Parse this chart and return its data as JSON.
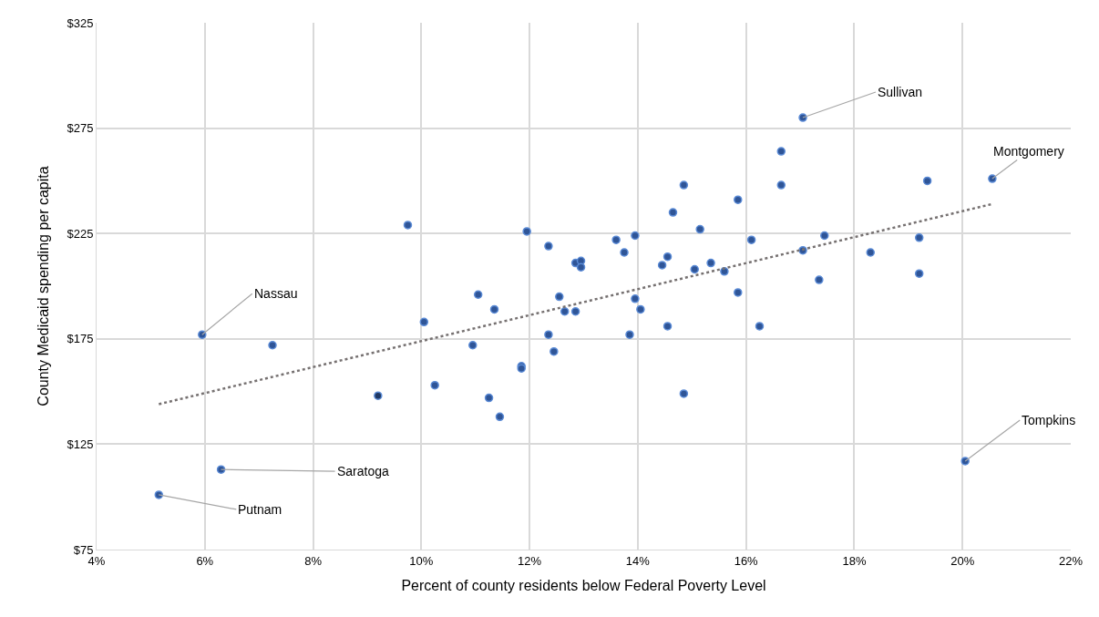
{
  "chart_data": {
    "type": "scatter",
    "xlabel": "Percent of county residents below Federal Poverty Level",
    "ylabel": "County Medicaid spending per capita",
    "xlim": [
      4,
      22
    ],
    "ylim": [
      75,
      325
    ],
    "xticks": [
      {
        "value": 4,
        "label": "4%"
      },
      {
        "value": 6,
        "label": "6%"
      },
      {
        "value": 8,
        "label": "8%"
      },
      {
        "value": 10,
        "label": "10%"
      },
      {
        "value": 12,
        "label": "12%"
      },
      {
        "value": 14,
        "label": "14%"
      },
      {
        "value": 16,
        "label": "16%"
      },
      {
        "value": 18,
        "label": "18%"
      },
      {
        "value": 20,
        "label": "20%"
      },
      {
        "value": 22,
        "label": "22%"
      }
    ],
    "yticks": [
      {
        "value": 75,
        "label": "$75"
      },
      {
        "value": 125,
        "label": "$125"
      },
      {
        "value": 175,
        "label": "$175"
      },
      {
        "value": 225,
        "label": "$225"
      },
      {
        "value": 275,
        "label": "$275"
      },
      {
        "value": 325,
        "label": "$325"
      }
    ],
    "grid": true,
    "marker": "circle",
    "series": [
      {
        "color": "#2f5597",
        "x": [
          5.15,
          5.95,
          6.3,
          7.25,
          9.2,
          9.75,
          10.05,
          10.25,
          10.95,
          11.05,
          11.25,
          11.35,
          11.45,
          11.85,
          11.85,
          11.95,
          12.35,
          12.35,
          12.45,
          12.55,
          12.65,
          12.85,
          12.95,
          12.95,
          12.85,
          13.6,
          13.75,
          13.85,
          13.95,
          13.95,
          14.05,
          14.45,
          14.55,
          14.55,
          14.65,
          14.85,
          14.85,
          15.05,
          15.15,
          15.35,
          15.6,
          15.85,
          15.85,
          16.1,
          16.25,
          16.65,
          16.65,
          17.05,
          17.05,
          17.35,
          17.45,
          18.3,
          19.2,
          19.2,
          19.35,
          20.05,
          20.55
        ],
        "values": [
          101,
          177,
          113,
          172,
          148,
          229,
          183,
          153,
          172,
          196,
          147,
          189,
          138,
          162,
          161,
          226,
          219,
          177,
          169,
          195,
          188,
          211,
          212,
          209,
          188,
          222,
          216,
          177,
          224,
          194,
          189,
          210,
          214,
          181,
          235,
          248,
          149,
          208,
          227,
          211,
          207,
          241,
          197,
          222,
          181,
          264,
          248,
          280,
          217,
          203,
          224,
          216,
          223,
          206,
          250,
          117,
          251
        ],
        "colors": [
          "#2f5597",
          "#2f5597",
          "#2f5597",
          "#2f5597",
          "#1f3864",
          "#2f5597",
          "#2f5597",
          "#2f5597",
          "#2f5597",
          "#2f5597",
          "#2f5597",
          "#2f5597",
          "#2f5597",
          "#2f5597",
          "#2f5597",
          "#2f5597",
          "#2f5597",
          "#2f5597",
          "#2f5597",
          "#2f5597",
          "#2f5597",
          "#2f5597",
          "#2f5597",
          "#2f5597",
          "#2f5597",
          "#2f5597",
          "#2f5597",
          "#2f5597",
          "#2f5597",
          "#2f5597",
          "#2f5597",
          "#2f5597",
          "#2f5597",
          "#2f5597",
          "#2f5597",
          "#2f5597",
          "#2f5597",
          "#2f5597",
          "#2f5597",
          "#2f5597",
          "#2f5597",
          "#2f5597",
          "#2f5597",
          "#2f5597",
          "#2f5597",
          "#2f5597",
          "#2f5597",
          "#2f5597",
          "#2f5597",
          "#2f5597",
          "#2f5597",
          "#2f5597",
          "#2f5597",
          "#2f5597",
          "#2f5597",
          "#2f5597",
          "#2f5597"
        ]
      },
      {
        "type": "line",
        "color": "#767171",
        "line_style": "dotted",
        "marker": "none",
        "x": [
          5.15,
          20.55
        ],
        "values": [
          144,
          239
        ]
      }
    ],
    "annotations": [
      {
        "text": "Sullivan",
        "x": 17.05,
        "y": 280
      },
      {
        "text": "Montgomery",
        "x": 20.55,
        "y": 251
      },
      {
        "text": "Nassau",
        "x": 5.95,
        "y": 177
      },
      {
        "text": "Saratoga",
        "x": 6.3,
        "y": 113
      },
      {
        "text": "Putnam",
        "x": 5.15,
        "y": 101
      },
      {
        "text": "Tompkins",
        "x": 20.05,
        "y": 117
      }
    ]
  }
}
